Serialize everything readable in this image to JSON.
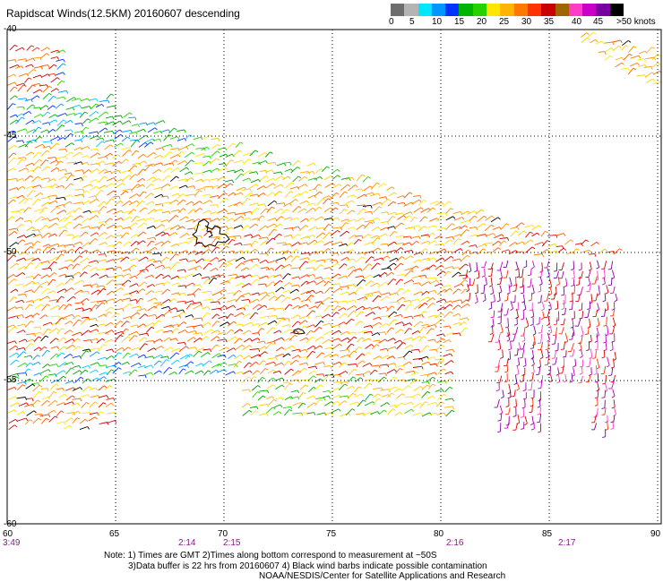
{
  "title": "Rapidscat Winds(12.5KM) 20160607 descending",
  "colorbar": {
    "colors": [
      "#6e6e6e",
      "#b4b4b4",
      "#00e6ff",
      "#0096ff",
      "#0032ff",
      "#00b400",
      "#28d200",
      "#ffe600",
      "#ffb400",
      "#ff7800",
      "#ff3200",
      "#c80000",
      "#a06400",
      "#ff3cc8",
      "#c800c8",
      "#7800a0",
      "#000000"
    ],
    "labels": [
      "0",
      "5",
      "10",
      "15",
      "20",
      "25",
      "30",
      "35",
      "40",
      "45",
      ">50 knots"
    ]
  },
  "axes": {
    "x_ticks": [
      "60",
      "65",
      "70",
      "75",
      "80",
      "85",
      "90"
    ],
    "y_ticks": [
      "-40",
      "-45",
      "-50",
      "-55",
      "-60"
    ]
  },
  "times": [
    "3:49",
    "2:14",
    "2:15",
    "2:16",
    "2:17"
  ],
  "notes": {
    "line1": "Note: 1) Times are GMT 2)Times along bottom correspond to measurement at ~50S",
    "line2": "3)Data buffer is 22 hrs from 20160607 4) Black wind barbs indicate possible contamination",
    "line3": "NOAA/NESDIS/Center for Satellite Applications and Research"
  }
}
